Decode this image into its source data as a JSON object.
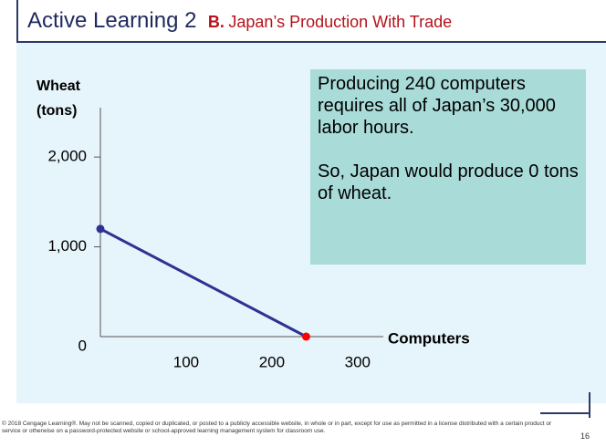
{
  "header": {
    "title": "Active Learning 2",
    "part": "B.",
    "subtitle": "Japan’s Production With Trade"
  },
  "chart_data": {
    "type": "line",
    "x": [
      0,
      240
    ],
    "series": [
      {
        "name": "Japan",
        "color": "#2e3192",
        "values": [
          1200,
          0
        ]
      }
    ],
    "point_colors": [
      "#2e3192",
      "#ff0000"
    ],
    "xlim": [
      0,
      330
    ],
    "ylim": [
      0,
      2550
    ],
    "xticks": [
      100,
      200,
      300
    ],
    "yticks": [
      0,
      {
        "value": 1000,
        "label": "1,000"
      },
      {
        "value": 2000,
        "label": "2,000"
      }
    ],
    "x_label": "Computers",
    "y_label": [
      "Wheat",
      "(tons)"
    ]
  },
  "callout": [
    "Producing 240 computers requires all of Japan’s 30,000 labor hours.",
    "So, Japan would produce 0 tons of wheat."
  ],
  "footer": {
    "copyright": "© 2018 Cengage Learning®. May not be scanned, copied or duplicated, or posted to a publicly accessible website, in whole or in part, except for use as permitted in a license distributed with a certain product or service or otherwise on a password-protected website or school-approved learning management system for classroom use.",
    "page": "16"
  }
}
